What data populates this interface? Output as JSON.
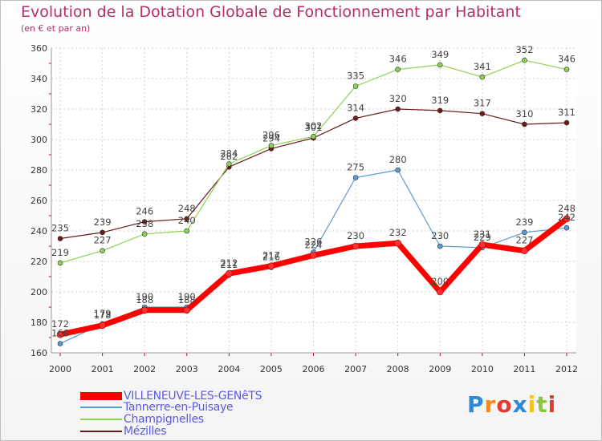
{
  "header": {
    "title": "Evolution de la Dotation Globale de Fonctionnement par Habitant",
    "subtitle": "(en € et par an)"
  },
  "chart_data": {
    "type": "line",
    "x": [
      "2000",
      "2001",
      "2002",
      "2003",
      "2004",
      "2005",
      "2006",
      "2007",
      "2008",
      "2009",
      "2010",
      "2011",
      "2012"
    ],
    "ylim": [
      160,
      360
    ],
    "yticks": [
      160,
      180,
      200,
      220,
      240,
      260,
      280,
      300,
      320,
      340,
      360
    ],
    "grid": true,
    "legend_position": "bottom-left",
    "series": [
      {
        "name": "VILLENEUVE-LES-GENêTS",
        "color": "#ff0000",
        "values": [
          172,
          178,
          188,
          188,
          212,
          217,
          224,
          230,
          232,
          200,
          231,
          227,
          248
        ]
      },
      {
        "name": "Tannerre-en-Puisaye",
        "color": "#5b9bd5",
        "values": [
          166,
          179,
          190,
          190,
          211,
          216,
          226,
          275,
          280,
          230,
          229,
          239,
          242
        ]
      },
      {
        "name": "Champignelles",
        "color": "#8ed254",
        "values": [
          219,
          227,
          238,
          240,
          284,
          296,
          302,
          335,
          346,
          349,
          341,
          352,
          346
        ]
      },
      {
        "name": "Mézilles",
        "color": "#6b1a1a",
        "values": [
          235,
          239,
          246,
          248,
          282,
          294,
          301,
          314,
          320,
          319,
          317,
          310,
          311
        ]
      }
    ]
  },
  "logo": {
    "letters": [
      "P",
      "r",
      "o",
      "x",
      "i",
      "t",
      "i"
    ],
    "colors": [
      "#2f88d8",
      "#f08a1e",
      "#e53a2f",
      "#2f88d8",
      "#f6c21a",
      "#8cc63f",
      "#e53a2f"
    ]
  }
}
